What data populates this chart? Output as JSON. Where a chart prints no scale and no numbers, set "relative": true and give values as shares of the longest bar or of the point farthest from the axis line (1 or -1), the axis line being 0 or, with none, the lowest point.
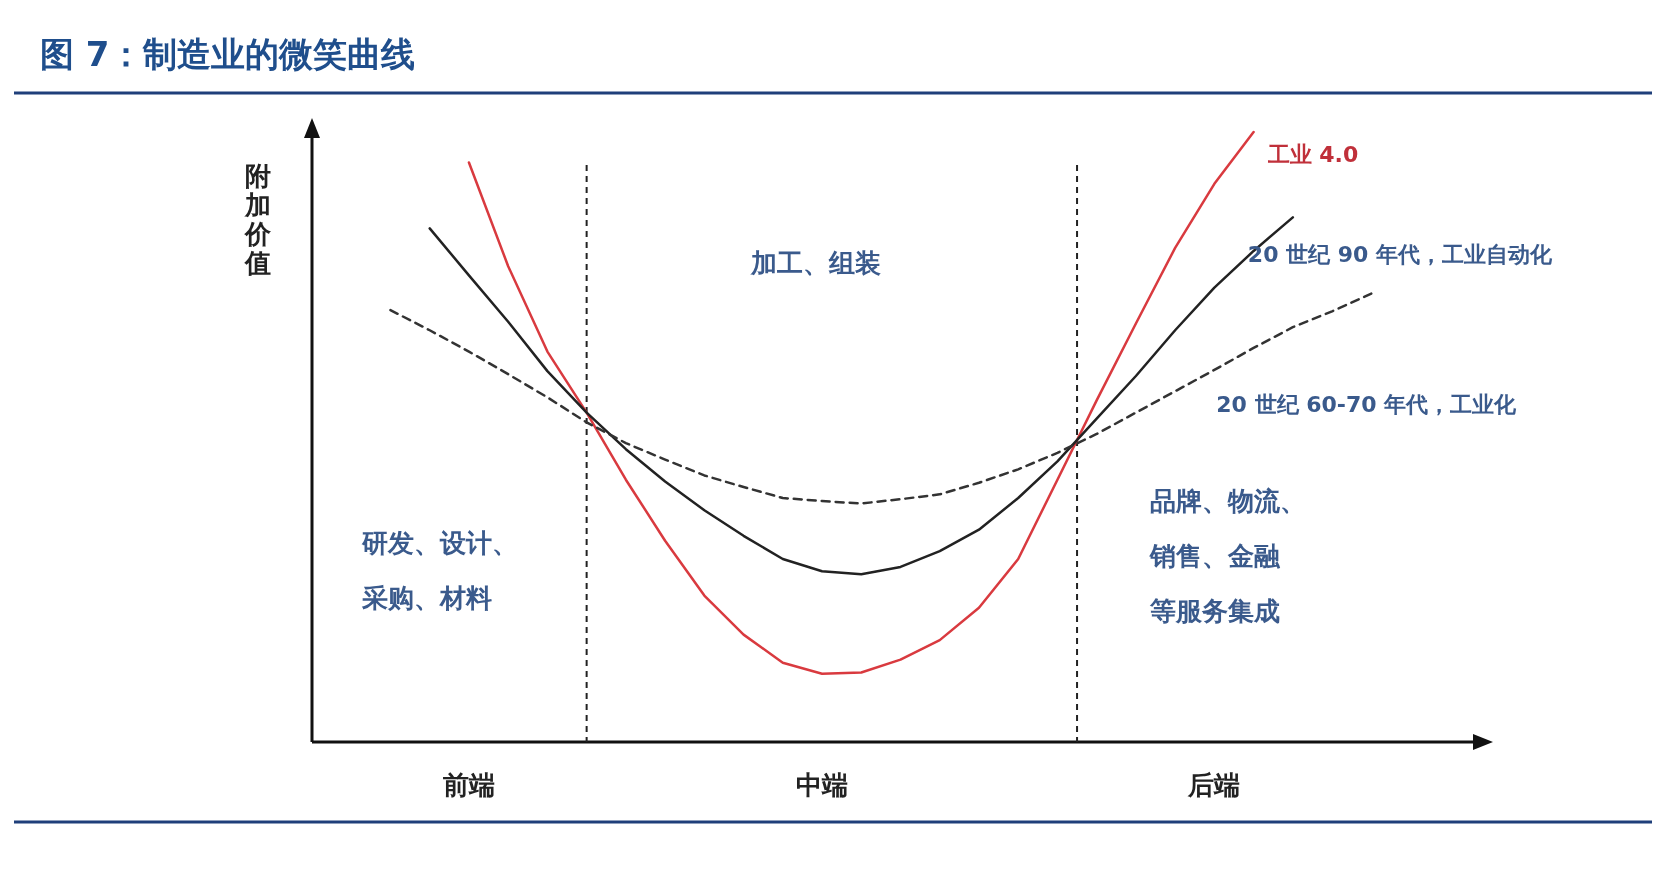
{
  "chart_data": {
    "type": "line",
    "title": "图 7：制造业的微笑曲线",
    "ylabel": "附加价值",
    "relative": true,
    "tick_labels": "x",
    "categories": [
      null,
      null,
      null,
      null,
      "前端",
      null,
      null,
      null,
      null,
      null,
      null,
      null,
      null,
      "中端",
      null,
      null,
      null,
      null,
      null,
      null,
      null,
      null,
      null,
      "后端",
      null,
      null,
      null,
      null,
      null,
      null,
      null
    ],
    "series": [
      {
        "name": "工业 4.0",
        "color": "#d93a3f",
        "line_style": "solid",
        "values": [
          null,
          null,
          null,
          null,
          0.95,
          0.78,
          0.64,
          0.54,
          0.43,
          0.33,
          0.24,
          0.176,
          0.13,
          0.112,
          0.114,
          0.135,
          0.167,
          0.22,
          0.3,
          0.43,
          0.56,
          0.686,
          0.81,
          0.915,
          1.0,
          null,
          null,
          null,
          null,
          null,
          null
        ]
      },
      {
        "name": "20 世纪 90 年代，工业自动化",
        "color": "#222222",
        "line_style": "solid",
        "values": [
          null,
          null,
          null,
          0.842,
          0.765,
          0.689,
          0.608,
          0.54,
          0.48,
          0.427,
          0.38,
          0.338,
          0.3,
          0.28,
          0.275,
          0.287,
          0.313,
          0.348,
          0.4,
          0.46,
          0.53,
          0.6,
          0.675,
          0.745,
          0.805,
          0.86,
          null,
          null,
          null,
          null,
          null
        ]
      },
      {
        "name": "20 世纪 60-70 年代，工业化",
        "color": "#333333",
        "line_style": "dashed",
        "values": [
          null,
          null,
          0.708,
          0.675,
          0.64,
          0.603,
          0.565,
          0.524,
          0.49,
          0.463,
          0.437,
          0.418,
          0.4,
          0.395,
          0.391,
          0.398,
          0.406,
          0.425,
          0.447,
          0.474,
          0.505,
          0.54,
          0.575,
          0.61,
          0.646,
          0.68,
          0.706,
          0.735,
          null,
          null,
          null
        ]
      }
    ],
    "annotations": [
      "加工、组装",
      "研发、设计、采购、材料",
      "品牌、物流、销售、金融等服务集成"
    ]
  }
}
